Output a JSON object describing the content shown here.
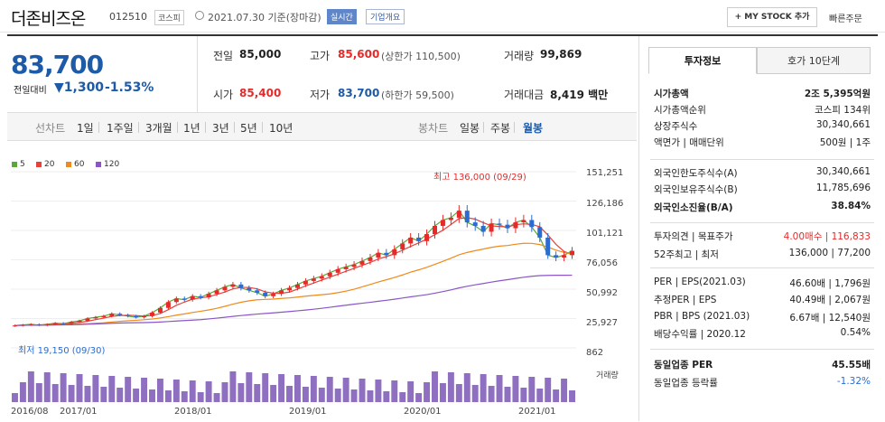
{
  "header": {
    "title": "더존비즈온",
    "code": "012510",
    "market": "코스피",
    "date": "2021.07.30 기준(장마감)",
    "realtime": "실시간",
    "overview": "기업개요",
    "mystock": "+ MY STOCK 추가",
    "quick_order": "빠른주문"
  },
  "price": {
    "current": "83,700",
    "change_label": "전일대비",
    "change_value": "▼1,300",
    "change_pct": "-1.53%"
  },
  "stats": {
    "prev_label": "전일",
    "prev_value": "85,000",
    "high_label": "고가",
    "high_value": "85,600",
    "upper_label": "(상한가 110,500)",
    "volume_label": "거래량",
    "volume_value": "99,869",
    "open_label": "시가",
    "open_value": "85,400",
    "low_label": "저가",
    "low_value": "83,700",
    "lower_label": "(하한가 59,500)",
    "amount_label": "거래대금",
    "amount_value": "8,419 백만"
  },
  "chart_tabs": {
    "line_label": "선차트",
    "line": [
      "1일",
      "1주일",
      "3개월",
      "1년",
      "3년",
      "5년",
      "10년"
    ],
    "candle_label": "봉차트",
    "candle": [
      "일봉",
      "주봉",
      "월봉"
    ]
  },
  "right_tabs": [
    "투자정보",
    "호가 10단계"
  ],
  "info": [
    {
      "k": "시가총액",
      "v": "2조 5,395억원",
      "bold": true
    },
    {
      "k": "시가총액순위",
      "v": "코스피 134위"
    },
    {
      "k": "상장주식수",
      "v": "30,340,661"
    },
    {
      "k": "액면가 | 매매단위",
      "v": "500원 | 1주"
    },
    {
      "k": "외국인한도주식수(A)",
      "v": "30,340,661"
    },
    {
      "k": "외국인보유주식수(B)",
      "v": "11,785,696"
    },
    {
      "k": "외국인소진율(B/A)",
      "v": "38.84%",
      "bold": true
    },
    {
      "k": "투자의견 | 목표주가",
      "v": "4.00매수 | 116,833"
    },
    {
      "k": "52주최고 | 최저",
      "v": "136,000 | 77,200"
    },
    {
      "k": "PER | EPS(2021.03)",
      "v": "46.60배 | 1,796원"
    },
    {
      "k": "추정PER | EPS",
      "v": "40.49배 | 2,067원"
    },
    {
      "k": "PBR | BPS (2021.03)",
      "v": "6.67배 | 12,540원"
    },
    {
      "k": "배당수익률 | 2020.12",
      "v": "0.54%"
    },
    {
      "k": "동일업종 PER",
      "v": "45.55배",
      "bold": true
    },
    {
      "k": "동일업종 등락률",
      "v": "-1.32%"
    }
  ],
  "colors": {
    "up": "#e62a2a",
    "down": "#2b6cd4",
    "ma5": "#5aa83a",
    "ma20": "#e6413a",
    "ma60": "#f08a1a",
    "ma120": "#8a56c6",
    "volume": "#8e6fc0"
  },
  "chart_data": {
    "type": "candlestick",
    "legend": [
      "5",
      "20",
      "60",
      "120"
    ],
    "y_ticks": [
      "151,251",
      "126,186",
      "101,121",
      "76,056",
      "50,992",
      "25,927",
      "862"
    ],
    "x_ticks": [
      "2016/08",
      "2017/01",
      "2018/01",
      "2019/01",
      "2020/01",
      "2021/01"
    ],
    "high_annotation": "최고 136,000 (09/29)",
    "low_annotation": "최저 19,150 (09/30)",
    "volume_label": "거래량",
    "closes": [
      20000,
      20500,
      21000,
      20300,
      21000,
      22000,
      21500,
      23000,
      24000,
      26000,
      27000,
      28000,
      30000,
      29000,
      28000,
      27000,
      28000,
      31000,
      35000,
      40000,
      43000,
      42000,
      45000,
      44000,
      47000,
      50000,
      53000,
      55000,
      52000,
      50000,
      48000,
      45000,
      47000,
      50000,
      52000,
      55000,
      58000,
      60000,
      62000,
      65000,
      68000,
      70000,
      72000,
      75000,
      78000,
      82000,
      80000,
      85000,
      90000,
      95000,
      92000,
      98000,
      105000,
      110000,
      112000,
      118000,
      108000,
      105000,
      100000,
      107000,
      106000,
      103000,
      108000,
      110000,
      104000,
      95000,
      80000,
      78000,
      80000,
      83700
    ]
  }
}
